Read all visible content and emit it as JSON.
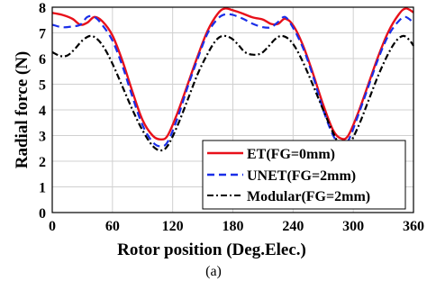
{
  "caption": "(a)",
  "chart_data": {
    "type": "line",
    "title": "",
    "xlabel": "Rotor position (Deg.Elec.)",
    "ylabel": "Radial force (N)",
    "xlim": [
      0,
      360
    ],
    "ylim": [
      0,
      8
    ],
    "xticks": [
      0,
      60,
      120,
      180,
      240,
      300,
      360
    ],
    "yticks": [
      0,
      1,
      2,
      3,
      4,
      5,
      6,
      7,
      8
    ],
    "grid": true,
    "legend_position": "bottom-right",
    "series": [
      {
        "name": "ET(FG=0mm)",
        "color": "#e8101a",
        "dash": "solid",
        "points": [
          [
            0,
            7.78
          ],
          [
            10,
            7.7
          ],
          [
            20,
            7.55
          ],
          [
            28,
            7.32
          ],
          [
            35,
            7.4
          ],
          [
            42,
            7.62
          ],
          [
            50,
            7.45
          ],
          [
            60,
            6.9
          ],
          [
            70,
            5.9
          ],
          [
            80,
            4.7
          ],
          [
            90,
            3.6
          ],
          [
            100,
            3.0
          ],
          [
            108,
            2.85
          ],
          [
            115,
            3.0
          ],
          [
            125,
            3.9
          ],
          [
            135,
            5.0
          ],
          [
            145,
            6.1
          ],
          [
            155,
            7.1
          ],
          [
            165,
            7.75
          ],
          [
            172,
            7.95
          ],
          [
            180,
            7.88
          ],
          [
            190,
            7.75
          ],
          [
            200,
            7.6
          ],
          [
            210,
            7.52
          ],
          [
            218,
            7.35
          ],
          [
            225,
            7.35
          ],
          [
            232,
            7.55
          ],
          [
            240,
            7.3
          ],
          [
            250,
            6.5
          ],
          [
            260,
            5.4
          ],
          [
            270,
            4.2
          ],
          [
            280,
            3.2
          ],
          [
            288,
            2.88
          ],
          [
            295,
            3.0
          ],
          [
            305,
            3.9
          ],
          [
            315,
            5.0
          ],
          [
            325,
            6.1
          ],
          [
            335,
            7.05
          ],
          [
            345,
            7.7
          ],
          [
            352,
            7.95
          ],
          [
            360,
            7.8
          ]
        ]
      },
      {
        "name": "UNET(FG=2mm)",
        "color": "#1a2ee8",
        "dash": "dashed",
        "points": [
          [
            0,
            7.32
          ],
          [
            10,
            7.22
          ],
          [
            20,
            7.25
          ],
          [
            28,
            7.32
          ],
          [
            35,
            7.62
          ],
          [
            42,
            7.62
          ],
          [
            50,
            7.3
          ],
          [
            60,
            6.7
          ],
          [
            70,
            5.7
          ],
          [
            80,
            4.5
          ],
          [
            90,
            3.4
          ],
          [
            100,
            2.75
          ],
          [
            108,
            2.58
          ],
          [
            115,
            2.75
          ],
          [
            125,
            3.7
          ],
          [
            135,
            4.9
          ],
          [
            145,
            6.0
          ],
          [
            155,
            7.0
          ],
          [
            165,
            7.55
          ],
          [
            172,
            7.72
          ],
          [
            180,
            7.7
          ],
          [
            190,
            7.55
          ],
          [
            200,
            7.35
          ],
          [
            210,
            7.22
          ],
          [
            218,
            7.22
          ],
          [
            225,
            7.42
          ],
          [
            232,
            7.62
          ],
          [
            240,
            7.2
          ],
          [
            250,
            6.4
          ],
          [
            260,
            5.3
          ],
          [
            270,
            4.0
          ],
          [
            280,
            3.0
          ],
          [
            288,
            2.62
          ],
          [
            295,
            2.8
          ],
          [
            305,
            3.8
          ],
          [
            315,
            4.9
          ],
          [
            325,
            6.0
          ],
          [
            335,
            6.9
          ],
          [
            345,
            7.45
          ],
          [
            352,
            7.62
          ],
          [
            360,
            7.4
          ]
        ]
      },
      {
        "name": "Modular(FG=2mm)",
        "color": "#000000",
        "dash": "dashdot",
        "points": [
          [
            0,
            6.25
          ],
          [
            8,
            6.1
          ],
          [
            15,
            6.12
          ],
          [
            22,
            6.35
          ],
          [
            30,
            6.7
          ],
          [
            38,
            6.88
          ],
          [
            45,
            6.75
          ],
          [
            52,
            6.4
          ],
          [
            60,
            5.8
          ],
          [
            70,
            4.9
          ],
          [
            80,
            4.0
          ],
          [
            90,
            3.2
          ],
          [
            100,
            2.6
          ],
          [
            108,
            2.42
          ],
          [
            115,
            2.6
          ],
          [
            125,
            3.4
          ],
          [
            135,
            4.4
          ],
          [
            145,
            5.4
          ],
          [
            155,
            6.2
          ],
          [
            163,
            6.7
          ],
          [
            170,
            6.88
          ],
          [
            178,
            6.8
          ],
          [
            185,
            6.55
          ],
          [
            192,
            6.25
          ],
          [
            200,
            6.15
          ],
          [
            208,
            6.2
          ],
          [
            215,
            6.45
          ],
          [
            222,
            6.75
          ],
          [
            228,
            6.88
          ],
          [
            235,
            6.78
          ],
          [
            242,
            6.45
          ],
          [
            250,
            5.85
          ],
          [
            260,
            4.95
          ],
          [
            270,
            4.0
          ],
          [
            280,
            3.1
          ],
          [
            288,
            2.55
          ],
          [
            295,
            2.6
          ],
          [
            305,
            3.35
          ],
          [
            315,
            4.35
          ],
          [
            325,
            5.35
          ],
          [
            335,
            6.2
          ],
          [
            343,
            6.7
          ],
          [
            350,
            6.88
          ],
          [
            356,
            6.72
          ],
          [
            360,
            6.5
          ]
        ]
      }
    ]
  }
}
